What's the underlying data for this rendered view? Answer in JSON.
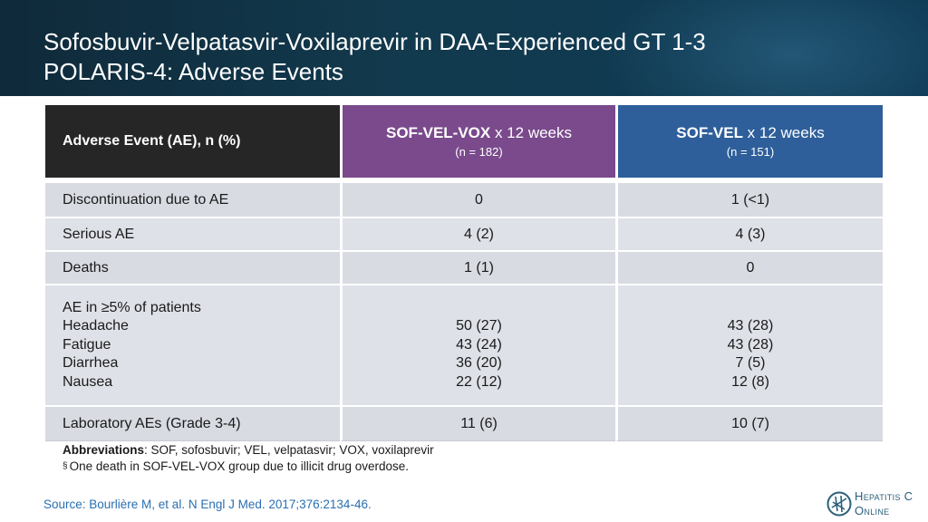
{
  "slide": {
    "title_line1": "Sofosbuvir-Velpatasvir-Voxilaprevir in DAA-Experienced GT 1-3",
    "title_line2": "POLARIS-4: Adverse Events"
  },
  "table": {
    "header": {
      "ae_label": "Adverse Event (AE), n (%)",
      "col_vox_bold": "SOF-VEL-VOX",
      "col_vox_rest": " x 12 weeks",
      "col_vox_n": "(n = 182)",
      "col_vel_bold": "SOF-VEL",
      "col_vel_rest": " x 12 weeks",
      "col_vel_n": "(n = 151)"
    },
    "rows": [
      {
        "label": "Discontinuation due to AE",
        "vox": "0",
        "vel": "1 (<1)"
      },
      {
        "label": "Serious AE",
        "vox": "4 (2)",
        "vel": "4 (3)"
      },
      {
        "label": "Deaths",
        "vox": "1 (1)",
        "vel": "0"
      },
      {
        "label": "AE in ≥5% of patients",
        "sub": [
          {
            "label": "Headache",
            "vox": "50 (27)",
            "vel": "43 (28)"
          },
          {
            "label": "Fatigue",
            "vox": "43 (24)",
            "vel": "43 (28)"
          },
          {
            "label": "Diarrhea",
            "vox": "36 (20)",
            "vel": "7 (5)"
          },
          {
            "label": "Nausea",
            "vox": "22 (12)",
            "vel": "12 (8)"
          }
        ]
      },
      {
        "label": "Laboratory AEs (Grade 3-4)",
        "vox": "11 (6)",
        "vel": "10 (7)"
      }
    ]
  },
  "footnotes": {
    "abbr_title": "Abbreviations",
    "abbr_text": ": SOF, sofosbuvir; VEL, velpatasvir; VOX, voxilaprevir",
    "note_symbol": "§",
    "note_text": "One death in SOF-VEL-VOX group due to illicit drug overdose."
  },
  "source": "Source: Bourlière M, et al. N Engl J Med. 2017;376:2134-46.",
  "logo": {
    "line1": "Hepatitis C",
    "line2": "Online"
  },
  "colors": {
    "header_bg": "#123a4e",
    "col_vox": "#7a4a8c",
    "col_vel": "#2e5f9a",
    "col_ae": "#262626",
    "row_bg": "#d9dbe3",
    "source_text": "#2a6fb0"
  }
}
